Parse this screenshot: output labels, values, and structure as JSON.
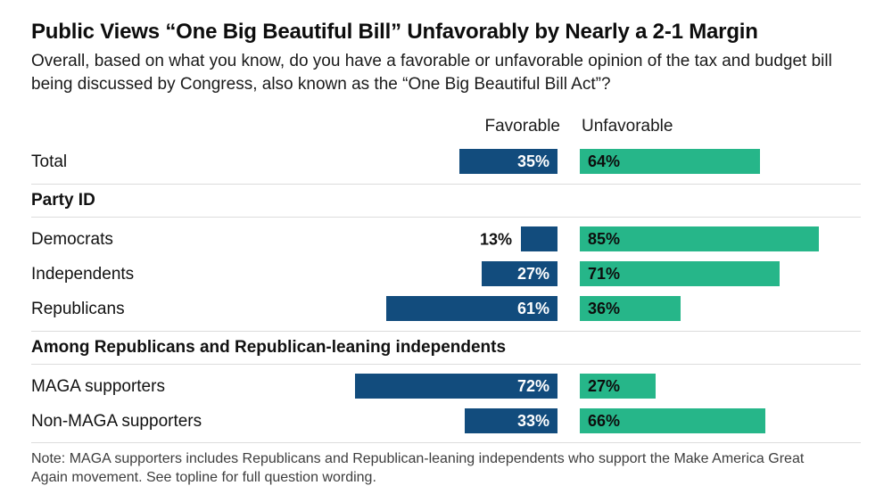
{
  "chart_data": {
    "type": "bar",
    "title": "Public Views “One Big Beautiful Bill” Unfavorably by Nearly a 2-1 Margin",
    "subtitle": "Overall, based on what you know, do you have a favorable or unfavorable opinion of the tax and budget bill being discussed by Congress, also known as the “One Big Beautiful Bill Act”?",
    "columns": {
      "favorable": "Favorable",
      "unfavorable": "Unfavorable"
    },
    "colors": {
      "favorable": "#124C7D",
      "unfavorable": "#26B689"
    },
    "xlim_percent": [
      0,
      100
    ],
    "legend_position": "top",
    "groups": [
      {
        "header": null,
        "rows": [
          {
            "label": "Total",
            "favorable": 35,
            "unfavorable": 64
          }
        ]
      },
      {
        "header": "Party ID",
        "rows": [
          {
            "label": "Democrats",
            "favorable": 13,
            "unfavorable": 85
          },
          {
            "label": "Independents",
            "favorable": 27,
            "unfavorable": 71
          },
          {
            "label": "Republicans",
            "favorable": 61,
            "unfavorable": 36
          }
        ]
      },
      {
        "header": "Among Republicans and Republican-leaning independents",
        "rows": [
          {
            "label": "MAGA supporters",
            "favorable": 72,
            "unfavorable": 27
          },
          {
            "label": "Non-MAGA supporters",
            "favorable": 33,
            "unfavorable": 66
          }
        ]
      }
    ],
    "note": "Note: MAGA supporters includes Republicans and Republican-leaning independents who support the Make America Great Again movement. See topline for full question wording."
  }
}
